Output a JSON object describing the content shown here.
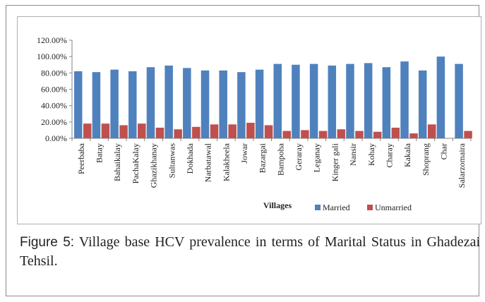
{
  "caption": {
    "label": "Figure 5:",
    "text": " Village base HCV prevalence in terms of Marital Status in Ghadezai Tehsil."
  },
  "chart_data": {
    "type": "bar",
    "xlabel": "Villages",
    "ylabel": "",
    "ylim": [
      0,
      120
    ],
    "y_ticks": [
      "0.00%",
      "20.00%",
      "40.00%",
      "60.00%",
      "80.00%",
      "100.00%",
      "120.00%"
    ],
    "grid": false,
    "legend_position": "bottom",
    "categories": [
      "Peerbaba",
      "Batay",
      "Bahaikalay",
      "PachaKalay",
      "Ghazikhanay",
      "Sultanwas",
      "Dokhada",
      "Narbatawal",
      "Kalakheela",
      "Jowar",
      "Bazargai",
      "Bampoha",
      "Geraray",
      "Leganay",
      "Kinger gali",
      "Nansir",
      "Kohay",
      "Charay",
      "Kakala",
      "Shoprang",
      "Char",
      "Salarzomaira"
    ],
    "series": [
      {
        "name": "Married",
        "color": "#4f81bd",
        "values": [
          82,
          81,
          84,
          82,
          87,
          89,
          86,
          83,
          83,
          81,
          84,
          91,
          90,
          91,
          89,
          91,
          92,
          87,
          94,
          83,
          100,
          91
        ]
      },
      {
        "name": "Unmarried",
        "color": "#c0504d",
        "values": [
          18,
          18,
          16,
          18,
          13,
          11,
          14,
          17,
          17,
          19,
          16,
          9,
          10,
          9,
          11,
          9,
          8,
          13,
          6,
          17,
          0,
          9
        ]
      }
    ]
  }
}
